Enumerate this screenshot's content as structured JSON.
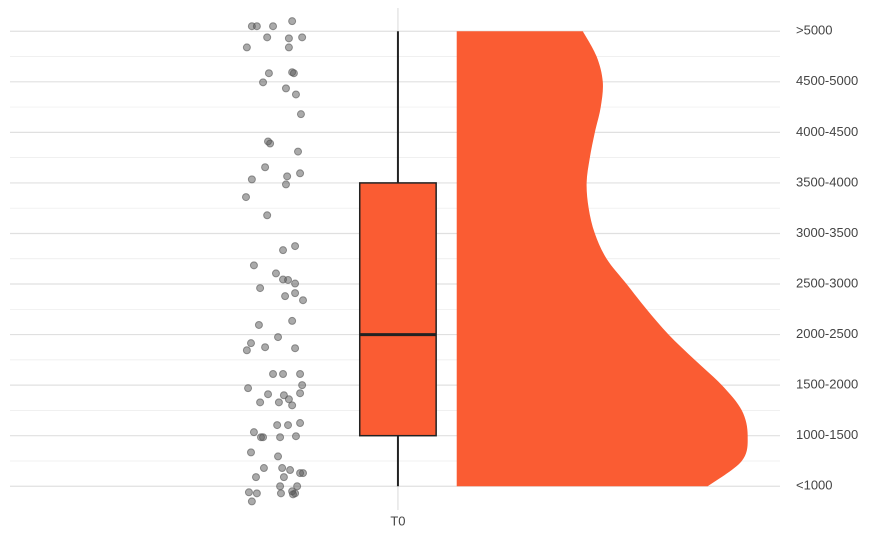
{
  "chart_data": {
    "type": "raincloud",
    "categories": [
      "T0"
    ],
    "color": "#fa5c33",
    "outline": "#222222",
    "point_color": "#555555",
    "xlim": [
      -0.32,
      2.3
    ],
    "ylim": [
      0.53,
      10.46
    ],
    "yticks": [
      {
        "value": 1,
        "label": "<1000"
      },
      {
        "value": 2,
        "label": "1000-1500"
      },
      {
        "value": 3,
        "label": "1500-2000"
      },
      {
        "value": 4,
        "label": "2000-2500"
      },
      {
        "value": 5,
        "label": "2500-3000"
      },
      {
        "value": 6,
        "label": "3000-3500"
      },
      {
        "value": 7,
        "label": "3500-4000"
      },
      {
        "value": 8,
        "label": "4000-4500"
      },
      {
        "value": 9,
        "label": "4500-5000"
      },
      {
        "value": 10,
        "label": ">5000"
      }
    ],
    "y_minor_grid": [
      1.5,
      2.5,
      3.5,
      4.5,
      5.5,
      6.5,
      7.5,
      8.5,
      9.5
    ],
    "grid": true,
    "box": {
      "whisker_low": 1,
      "q1": 2,
      "median": 4,
      "q3": 7,
      "whisker_high": 10
    },
    "violin_x": 1.2,
    "density": {
      "y": [
        1,
        1.5,
        2,
        2.5,
        3,
        3.5,
        4,
        4.5,
        5,
        5.5,
        6,
        6.5,
        7,
        7.5,
        8,
        8.5,
        9,
        9.5,
        10
      ],
      "width": [
        0.854,
        0.97,
        0.99,
        0.97,
        0.902,
        0.81,
        0.721,
        0.646,
        0.578,
        0.51,
        0.47,
        0.449,
        0.442,
        0.453,
        0.47,
        0.49,
        0.497,
        0.476,
        0.429
      ]
    },
    "points": {
      "x": [
        0.503,
        0.52,
        0.575,
        0.64,
        0.555,
        0.629,
        0.674,
        0.486,
        0.629,
        0.561,
        0.64,
        0.646,
        0.541,
        0.619,
        0.653,
        0.67,
        0.558,
        0.565,
        0.66,
        0.548,
        0.503,
        0.623,
        0.667,
        0.619,
        0.483,
        0.555,
        0.65,
        0.609,
        0.51,
        0.585,
        0.609,
        0.626,
        0.65,
        0.531,
        0.616,
        0.65,
        0.677,
        0.64,
        0.527,
        0.592,
        0.5,
        0.548,
        0.486,
        0.65,
        0.575,
        0.609,
        0.667,
        0.674,
        0.49,
        0.558,
        0.612,
        0.667,
        0.531,
        0.595,
        0.629,
        0.64,
        0.51,
        0.534,
        0.541,
        0.599,
        0.589,
        0.626,
        0.667,
        0.653,
        0.5,
        0.592,
        0.544,
        0.606,
        0.633,
        0.667,
        0.677,
        0.517,
        0.612,
        0.599,
        0.657,
        0.493,
        0.52,
        0.602,
        0.64,
        0.643,
        0.65,
        0.503
      ],
      "y": [
        10.1,
        10.1,
        10.1,
        10.2,
        9.88,
        9.86,
        9.88,
        9.68,
        9.68,
        9.17,
        9.19,
        9.17,
        8.99,
        8.87,
        8.75,
        8.36,
        7.82,
        7.78,
        7.62,
        7.31,
        7.07,
        7.13,
        7.19,
        6.97,
        6.72,
        6.36,
        5.75,
        5.67,
        5.37,
        5.21,
        5.09,
        5.08,
        5.01,
        4.92,
        4.76,
        4.82,
        4.68,
        4.27,
        4.19,
        3.95,
        3.83,
        3.75,
        3.69,
        3.73,
        3.22,
        3.22,
        3.22,
        3.0,
        2.94,
        2.82,
        2.8,
        2.84,
        2.66,
        2.66,
        2.72,
        2.6,
        2.07,
        1.97,
        1.97,
        1.97,
        2.21,
        2.21,
        2.25,
        1.99,
        1.67,
        1.59,
        1.36,
        1.36,
        1.32,
        1.26,
        1.26,
        1.18,
        1.18,
        1.0,
        1.0,
        0.88,
        0.86,
        0.86,
        0.9,
        0.84,
        0.86,
        0.7
      ]
    }
  }
}
